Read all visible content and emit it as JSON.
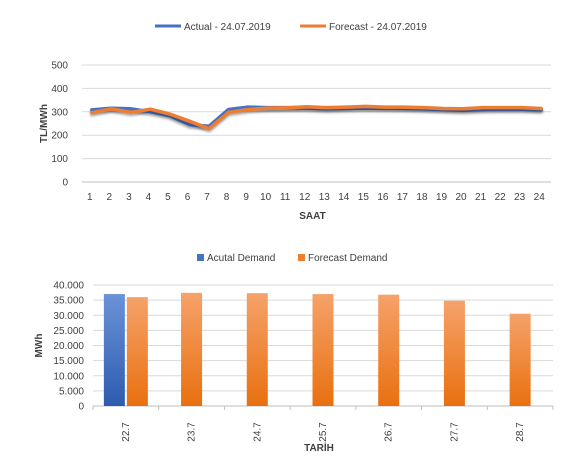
{
  "chart_data": [
    {
      "type": "line",
      "title": "",
      "xlabel": "SAAT",
      "ylabel": "TL/MWh",
      "ylim": [
        0,
        500
      ],
      "yticks": [
        "0",
        "100",
        "200",
        "300",
        "400",
        "500"
      ],
      "categories": [
        "1",
        "2",
        "3",
        "4",
        "5",
        "6",
        "7",
        "8",
        "9",
        "10",
        "11",
        "12",
        "13",
        "14",
        "15",
        "16",
        "17",
        "18",
        "19",
        "20",
        "21",
        "22",
        "23",
        "24"
      ],
      "grid": "horizontal",
      "legend_position": "top",
      "series": [
        {
          "name": "Actual - 24.07.2019",
          "color": "#4472C4",
          "values": [
            308,
            315,
            313,
            300,
            283,
            245,
            238,
            310,
            320,
            318,
            318,
            316,
            312,
            314,
            316,
            315,
            314,
            312,
            310,
            306,
            310,
            311,
            311,
            308
          ]
        },
        {
          "name": "Forecast - 24.07.2019",
          "color": "#ED7D31",
          "values": [
            296,
            313,
            298,
            311,
            290,
            260,
            228,
            298,
            310,
            316,
            317,
            322,
            318,
            320,
            323,
            320,
            320,
            318,
            314,
            313,
            318,
            318,
            318,
            314
          ]
        }
      ]
    },
    {
      "type": "bar",
      "title": "",
      "xlabel": "TARİH",
      "ylabel": "MWh",
      "ylim": [
        0,
        40000
      ],
      "yticks": [
        "0",
        "5.000",
        "10.000",
        "15.000",
        "20.000",
        "25.000",
        "30.000",
        "35.000",
        "40.000"
      ],
      "categories": [
        "22.7",
        "23.7",
        "24.7",
        "25.7",
        "26.7",
        "27.7",
        "28.7"
      ],
      "grid": "horizontal",
      "legend_position": "top",
      "series": [
        {
          "name": "Acutal Demand",
          "color": "#4472C4",
          "values": [
            37000,
            null,
            null,
            null,
            null,
            null,
            null
          ]
        },
        {
          "name": "Forecast Demand",
          "color": "#ED7D31",
          "values": [
            36000,
            37400,
            37300,
            37000,
            36800,
            34800,
            30500
          ]
        }
      ]
    }
  ]
}
